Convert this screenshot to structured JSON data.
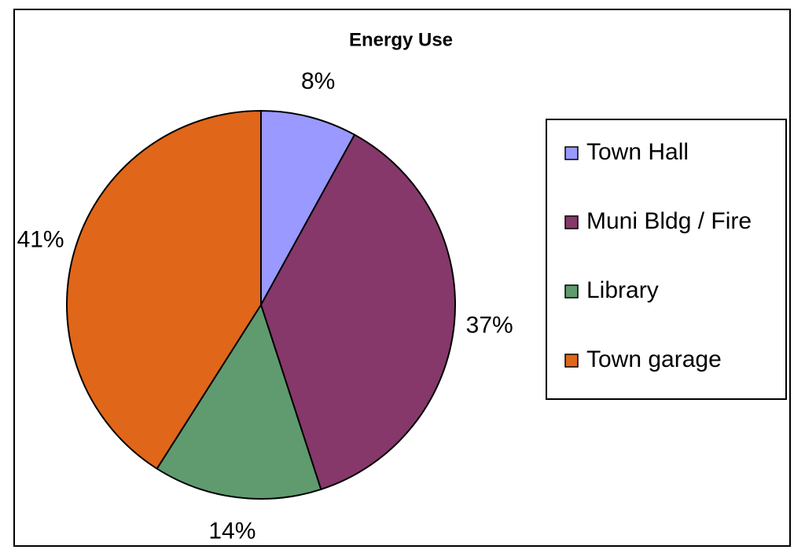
{
  "chart_data": {
    "type": "pie",
    "title": "Energy Use",
    "categories": [
      "Town Hall",
      "Muni Bldg / Fire",
      "Library",
      "Town garage"
    ],
    "values": [
      8,
      37,
      14,
      41
    ],
    "value_labels": [
      "8%",
      "37%",
      "14%",
      "41%"
    ],
    "colors": [
      "#9999ff",
      "#86386a",
      "#5f9b6e",
      "#e0661a"
    ],
    "legend": "right"
  }
}
